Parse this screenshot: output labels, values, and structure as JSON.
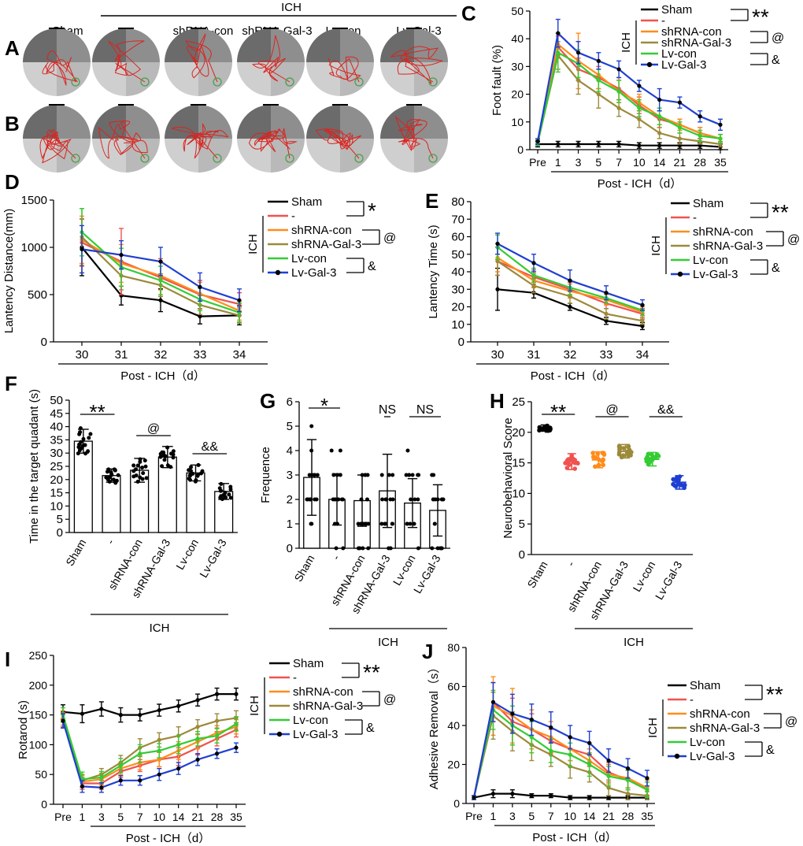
{
  "colors": {
    "sham": "#000000",
    "ich": "#f0524f",
    "shrna_con": "#ff8c1a",
    "shrna_gal3": "#9c8a3a",
    "lv_con": "#33cc33",
    "lv_gal3": "#1f3fd1",
    "arena_dark": "#6b6b6b",
    "arena_mid": "#8e8e8e",
    "arena_light": "#cfcfcf",
    "swim_path": "#d9241f",
    "platform": "#4aa04a"
  },
  "legend": {
    "sham": "Sham",
    "ich": "-",
    "shrna_con": "shRNA-con",
    "shrna_gal3": "shRNA-Gal-3",
    "lv_con": "Lv-con",
    "lv_gal3": "Lv-Gal-3",
    "group_label": "ICH"
  },
  "panels": {
    "A": "A",
    "B": "B",
    "C": "C",
    "D": "D",
    "E": "E",
    "F": "F",
    "G": "G",
    "H": "H",
    "I": "I",
    "J": "J"
  },
  "trace_panel": {
    "ich_header": "ICH",
    "columns": [
      "Sham",
      "-",
      "shRNA-con",
      "shRNA-Gal-3",
      "Lv-con",
      "Lv-Gal-3"
    ]
  },
  "chart_data": [
    {
      "panel": "C",
      "type": "line",
      "ylabel": "Foot fault (%)",
      "xlabel": "Post - ICH（d）",
      "categories": [
        "Pre",
        "1",
        "3",
        "5",
        "7",
        "10",
        "14",
        "21",
        "28",
        "35"
      ],
      "yticks": [
        0,
        10,
        20,
        30,
        40,
        50
      ],
      "ylim": [
        0,
        50
      ],
      "annotations": [
        "**",
        "@",
        "&"
      ],
      "series": [
        {
          "key": "sham",
          "values": [
            2,
            2,
            2,
            2,
            2,
            1.5,
            1.5,
            1.5,
            1.5,
            1
          ],
          "err": [
            1,
            1,
            1,
            1,
            1,
            1,
            1,
            1,
            1,
            1
          ]
        },
        {
          "key": "ich",
          "values": [
            2.5,
            37,
            29,
            26,
            22,
            16,
            11,
            9,
            6,
            4
          ],
          "err": [
            1,
            4,
            4,
            4,
            4,
            3,
            3,
            2,
            2,
            1.5
          ]
        },
        {
          "key": "shrna_con",
          "values": [
            2.5,
            38,
            32,
            27,
            21,
            17,
            12,
            9,
            6,
            4
          ],
          "err": [
            1,
            4,
            10,
            5,
            4,
            3,
            3,
            2,
            2,
            1.5
          ]
        },
        {
          "key": "shrna_gal3",
          "values": [
            2.5,
            34,
            25,
            20,
            15,
            11,
            6,
            4,
            3,
            2
          ],
          "err": [
            1,
            5,
            5,
            5,
            3,
            3,
            2,
            2,
            1,
            1
          ]
        },
        {
          "key": "lv_con",
          "values": [
            2.5,
            35,
            31,
            25,
            21,
            15,
            12,
            8,
            5,
            4
          ],
          "err": [
            1,
            7,
            5,
            4,
            4,
            3,
            3,
            2,
            2,
            1.5
          ]
        },
        {
          "key": "lv_gal3",
          "values": [
            3,
            42,
            35,
            32,
            29,
            23,
            18,
            17,
            12,
            9
          ],
          "err": [
            1,
            5,
            4,
            3,
            3,
            2,
            4,
            2,
            2,
            2
          ]
        }
      ]
    },
    {
      "panel": "D",
      "type": "line",
      "ylabel": "Lantency Distance(mm)",
      "xlabel": "Post - ICH（d）",
      "categories": [
        "30",
        "31",
        "32",
        "33",
        "34"
      ],
      "yticks": [
        0,
        500,
        1000,
        1500
      ],
      "ylim": [
        0,
        1500
      ],
      "annotations": [
        "*",
        "@",
        "&"
      ],
      "series": [
        {
          "key": "sham",
          "values": [
            1000,
            490,
            440,
            270,
            280
          ],
          "err": [
            300,
            100,
            120,
            80,
            100
          ]
        },
        {
          "key": "ich",
          "values": [
            1050,
            850,
            680,
            500,
            400
          ],
          "err": [
            250,
            350,
            200,
            150,
            120
          ]
        },
        {
          "key": "shrna_con",
          "values": [
            1080,
            830,
            700,
            510,
            330
          ],
          "err": [
            250,
            200,
            150,
            120,
            100
          ]
        },
        {
          "key": "shrna_gal3",
          "values": [
            1110,
            700,
            600,
            390,
            280
          ],
          "err": [
            300,
            150,
            120,
            100,
            80
          ]
        },
        {
          "key": "lv_con",
          "values": [
            1160,
            790,
            650,
            450,
            310
          ],
          "err": [
            250,
            200,
            150,
            120,
            100
          ]
        },
        {
          "key": "lv_gal3",
          "values": [
            980,
            920,
            850,
            580,
            440
          ],
          "err": [
            250,
            150,
            150,
            150,
            120
          ]
        }
      ]
    },
    {
      "panel": "E",
      "type": "line",
      "ylabel": "Lantency Time (s)",
      "xlabel": "Post - ICH（d）",
      "categories": [
        "30",
        "31",
        "32",
        "33",
        "34"
      ],
      "yticks": [
        0,
        10,
        20,
        30,
        40,
        50,
        60,
        70,
        80
      ],
      "ylim": [
        0,
        80
      ],
      "annotations": [
        "**",
        "@",
        "&"
      ],
      "series": [
        {
          "key": "sham",
          "values": [
            30,
            28,
            20,
            12,
            9
          ],
          "err": [
            12,
            3,
            2,
            2,
            2
          ]
        },
        {
          "key": "ich",
          "values": [
            46,
            37,
            30,
            22,
            16
          ],
          "err": [
            8,
            4,
            4,
            3,
            3
          ]
        },
        {
          "key": "shrna_con",
          "values": [
            48,
            35,
            29,
            24,
            17
          ],
          "err": [
            8,
            4,
            4,
            3,
            3
          ]
        },
        {
          "key": "shrna_gal3",
          "values": [
            46,
            32,
            26,
            16,
            12
          ],
          "err": [
            8,
            4,
            4,
            3,
            2
          ]
        },
        {
          "key": "lv_con",
          "values": [
            54,
            38,
            31,
            25,
            18
          ],
          "err": [
            7,
            4,
            4,
            3,
            3
          ]
        },
        {
          "key": "lv_gal3",
          "values": [
            56,
            45,
            35,
            28,
            21
          ],
          "err": [
            6,
            5,
            6,
            4,
            3
          ]
        }
      ]
    },
    {
      "panel": "F",
      "type": "bar",
      "ylabel": "Time in the target quadant (s)",
      "xlabel": "ICH",
      "categories": [
        "Sham",
        "-",
        "shRNA-con",
        "shRNA-Gal-3",
        "Lv-con",
        "Lv-Gal-3"
      ],
      "values": [
        34.5,
        21.5,
        23.5,
        28.5,
        22.5,
        15.5
      ],
      "err": [
        4.5,
        2.5,
        4.5,
        4,
        3,
        3
      ],
      "yticks": [
        0,
        5,
        10,
        15,
        20,
        25,
        30,
        35,
        40,
        45,
        50
      ],
      "ylim": [
        0,
        50
      ],
      "annotations": [
        "**",
        "@",
        "&&"
      ]
    },
    {
      "panel": "G",
      "type": "bar",
      "ylabel": "Frequence",
      "xlabel": "ICH",
      "categories": [
        "Sham",
        "-",
        "shRNA-con",
        "shRNA-Gal-3",
        "Lv-con",
        "Lv-Gal-3"
      ],
      "values": [
        2.9,
        2.0,
        1.95,
        2.35,
        1.85,
        1.55
      ],
      "err": [
        1.55,
        1.05,
        1.05,
        1.5,
        1.0,
        1.05
      ],
      "yticks": [
        0,
        1,
        2,
        3,
        4,
        5,
        6
      ],
      "ylim": [
        0,
        6
      ],
      "annotations": [
        "*",
        "NS",
        "NS"
      ]
    },
    {
      "panel": "H",
      "type": "scatter",
      "ylabel": "Neurobehavioral Score",
      "xlabel": "ICH",
      "categories": [
        "Sham",
        "-",
        "shRNA-con",
        "shRNA-Gal-3",
        "Lv-con",
        "Lv-Gal-3"
      ],
      "values": [
        20.7,
        15.2,
        15.5,
        16.9,
        15.6,
        11.8
      ],
      "err": [
        0.5,
        1.3,
        1.3,
        1.1,
        1.1,
        1.1
      ],
      "yticks": [
        0,
        5,
        10,
        15,
        20,
        25
      ],
      "ylim": [
        0,
        25
      ],
      "annotations": [
        "**",
        "@",
        "&&"
      ]
    },
    {
      "panel": "I",
      "type": "line",
      "ylabel": "Rotarod (s)",
      "xlabel": "Post - ICH（d）",
      "categories": [
        "Pre",
        "1",
        "3",
        "5",
        "7",
        "10",
        "14",
        "21",
        "28",
        "35"
      ],
      "yticks": [
        0,
        50,
        100,
        150,
        200,
        250
      ],
      "ylim": [
        0,
        250
      ],
      "annotations": [
        "**",
        "@",
        "&"
      ],
      "series": [
        {
          "key": "sham",
          "values": [
            155,
            152,
            160,
            150,
            150,
            158,
            165,
            175,
            185,
            185
          ],
          "err": [
            12,
            15,
            12,
            12,
            10,
            10,
            10,
            10,
            10,
            10
          ]
        },
        {
          "key": "ich",
          "values": [
            142,
            35,
            35,
            55,
            65,
            75,
            80,
            95,
            110,
            125
          ],
          "err": [
            12,
            10,
            10,
            10,
            10,
            12,
            15,
            12,
            12,
            12
          ]
        },
        {
          "key": "shrna_con",
          "values": [
            145,
            38,
            42,
            60,
            70,
            75,
            90,
            105,
            120,
            130
          ],
          "err": [
            12,
            10,
            10,
            10,
            12,
            12,
            15,
            12,
            12,
            12
          ]
        },
        {
          "key": "shrna_gal3",
          "values": [
            140,
            40,
            50,
            70,
            95,
            108,
            115,
            130,
            140,
            145
          ],
          "err": [
            12,
            10,
            10,
            12,
            15,
            12,
            15,
            12,
            12,
            12
          ]
        },
        {
          "key": "lv_con",
          "values": [
            150,
            42,
            45,
            65,
            85,
            90,
            100,
            110,
            115,
            135
          ],
          "err": [
            12,
            12,
            10,
            12,
            15,
            12,
            15,
            12,
            12,
            12
          ]
        },
        {
          "key": "lv_gal3",
          "values": [
            140,
            30,
            28,
            40,
            40,
            50,
            60,
            75,
            85,
            95
          ],
          "err": [
            12,
            10,
            8,
            8,
            8,
            10,
            10,
            10,
            8,
            8
          ]
        }
      ]
    },
    {
      "panel": "J",
      "type": "line",
      "ylabel": "Adhesive Removal（s）",
      "xlabel": "Post - ICH（d）",
      "categories": [
        "Pre",
        "1",
        "3",
        "5",
        "7",
        "10",
        "14",
        "21",
        "28",
        "35"
      ],
      "yticks": [
        0,
        20,
        40,
        60,
        80
      ],
      "ylim": [
        0,
        80
      ],
      "annotations": [
        "**",
        "@",
        "&"
      ],
      "series": [
        {
          "key": "sham",
          "values": [
            3,
            5,
            5,
            4,
            4,
            3,
            3,
            3,
            3,
            3
          ],
          "err": [
            1,
            2,
            2,
            1,
            1,
            1,
            1,
            1,
            1,
            1
          ]
        },
        {
          "key": "ich",
          "values": [
            3,
            52,
            42,
            38,
            32,
            28,
            25,
            16,
            12,
            8
          ],
          "err": [
            1,
            10,
            12,
            8,
            6,
            6,
            6,
            5,
            5,
            4
          ]
        },
        {
          "key": "shrna_con",
          "values": [
            3,
            50,
            45,
            38,
            34,
            28,
            22,
            15,
            13,
            8
          ],
          "err": [
            1,
            15,
            14,
            10,
            8,
            6,
            6,
            5,
            5,
            4
          ]
        },
        {
          "key": "shrna_gal3",
          "values": [
            3,
            45,
            37,
            30,
            25,
            19,
            16,
            8,
            5,
            4
          ],
          "err": [
            1,
            12,
            10,
            8,
            6,
            6,
            5,
            4,
            3,
            2
          ]
        },
        {
          "key": "lv_con",
          "values": [
            3,
            48,
            40,
            34,
            27,
            25,
            20,
            14,
            12,
            7
          ],
          "err": [
            1,
            10,
            10,
            8,
            6,
            6,
            6,
            5,
            5,
            4
          ]
        },
        {
          "key": "lv_gal3",
          "values": [
            3,
            52,
            46,
            43,
            39,
            34,
            31,
            22,
            18,
            13
          ],
          "err": [
            1,
            10,
            10,
            8,
            8,
            6,
            6,
            6,
            5,
            4
          ]
        }
      ]
    }
  ]
}
